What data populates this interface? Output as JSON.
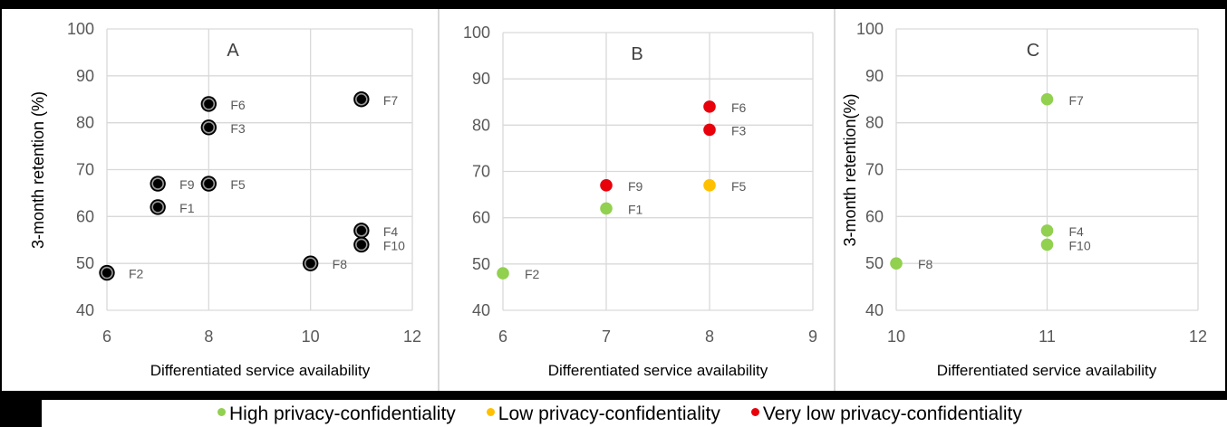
{
  "chart_data": [
    {
      "type": "scatter",
      "title": "A",
      "xlabel": "Differentiated service availability",
      "ylabel": "3-month retention (%)",
      "xlim": [
        6,
        12
      ],
      "ylim": [
        40,
        100
      ],
      "xticks": [
        6,
        8,
        10,
        12
      ],
      "yticks": [
        40,
        50,
        60,
        70,
        80,
        90,
        100
      ],
      "grid": true,
      "points": [
        {
          "label": "F1",
          "x": 7,
          "y": 62,
          "color": "#000000"
        },
        {
          "label": "F2",
          "x": 6,
          "y": 48,
          "color": "#000000"
        },
        {
          "label": "F3",
          "x": 8,
          "y": 79,
          "color": "#000000"
        },
        {
          "label": "F4",
          "x": 11,
          "y": 57,
          "color": "#000000"
        },
        {
          "label": "F5",
          "x": 8,
          "y": 67,
          "color": "#000000"
        },
        {
          "label": "F6",
          "x": 8,
          "y": 84,
          "color": "#000000"
        },
        {
          "label": "F7",
          "x": 11,
          "y": 85,
          "color": "#000000"
        },
        {
          "label": "F8",
          "x": 10,
          "y": 50,
          "color": "#000000"
        },
        {
          "label": "F9",
          "x": 7,
          "y": 67,
          "color": "#000000"
        },
        {
          "label": "F10",
          "x": 11,
          "y": 54,
          "color": "#000000"
        }
      ]
    },
    {
      "type": "scatter",
      "title": "B",
      "xlabel": "Differentiated service availability",
      "ylabel": "",
      "xlim": [
        6,
        9
      ],
      "ylim": [
        40,
        100
      ],
      "xticks": [
        6,
        7,
        8,
        9
      ],
      "yticks": [
        40,
        50,
        60,
        70,
        80,
        90,
        100
      ],
      "grid": true,
      "points": [
        {
          "label": "F1",
          "x": 7,
          "y": 62,
          "color": "#92d050"
        },
        {
          "label": "F2",
          "x": 6,
          "y": 48,
          "color": "#92d050"
        },
        {
          "label": "F3",
          "x": 8,
          "y": 79,
          "color": "#e8000b"
        },
        {
          "label": "F5",
          "x": 8,
          "y": 67,
          "color": "#ffc000"
        },
        {
          "label": "F6",
          "x": 8,
          "y": 84,
          "color": "#e8000b"
        },
        {
          "label": "F9",
          "x": 7,
          "y": 67,
          "color": "#e8000b"
        }
      ]
    },
    {
      "type": "scatter",
      "title": "C",
      "xlabel": "Differentiated service availability",
      "ylabel": "3-month  retention(%)",
      "xlim": [
        10,
        12
      ],
      "ylim": [
        40,
        100
      ],
      "xticks": [
        10,
        11,
        12
      ],
      "yticks": [
        40,
        50,
        60,
        70,
        80,
        90,
        100
      ],
      "grid": true,
      "points": [
        {
          "label": "F4",
          "x": 11,
          "y": 57,
          "color": "#92d050"
        },
        {
          "label": "F7",
          "x": 11,
          "y": 85,
          "color": "#92d050"
        },
        {
          "label": "F8",
          "x": 10,
          "y": 50,
          "color": "#92d050"
        },
        {
          "label": "F10",
          "x": 11,
          "y": 54,
          "color": "#92d050"
        }
      ]
    }
  ],
  "legend": {
    "placement": "bottom",
    "items": [
      {
        "label": "High privacy-confidentiality",
        "color": "#92d050"
      },
      {
        "label": "Low privacy-confidentiality",
        "color": "#ffc000"
      },
      {
        "label": "Very low privacy-confidentiality",
        "color": "#e8000b"
      }
    ]
  }
}
